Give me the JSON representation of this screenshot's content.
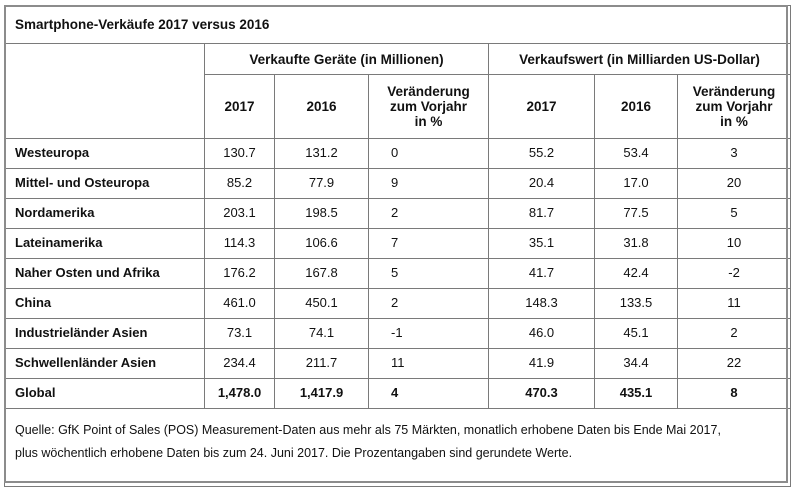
{
  "title": "Smartphone-Verkäufe 2017 versus 2016",
  "groups": {
    "units": "Verkaufte Geräte (in Millionen)",
    "value": "Verkaufswert (in Milliarden US-Dollar)"
  },
  "column_headers": {
    "units_2017": "2017",
    "units_2016": "2016",
    "units_change_l1": "Veränderung",
    "units_change_l2": "zum Vorjahr",
    "units_change_l3": "in %",
    "value_2017": "2017",
    "value_2016": "2016",
    "value_change_l1": "Veränderung",
    "value_change_l2": "zum Vorjahr",
    "value_change_l3": "in %"
  },
  "rows": [
    {
      "region": "Westeuropa",
      "u17": "130.7",
      "u16": "131.2",
      "uc": "0",
      "v17": "55.2",
      "v16": "53.4",
      "vc": "3"
    },
    {
      "region": "Mittel- und Osteuropa",
      "u17": "85.2",
      "u16": "77.9",
      "uc": "9",
      "v17": "20.4",
      "v16": "17.0",
      "vc": "20"
    },
    {
      "region": "Nordamerika",
      "u17": "203.1",
      "u16": "198.5",
      "uc": "2",
      "v17": "81.7",
      "v16": "77.5",
      "vc": "5"
    },
    {
      "region": "Lateinamerika",
      "u17": "114.3",
      "u16": "106.6",
      "uc": "7",
      "v17": "35.1",
      "v16": "31.8",
      "vc": "10"
    },
    {
      "region": "Naher Osten und Afrika",
      "u17": "176.2",
      "u16": "167.8",
      "uc": "5",
      "v17": "41.7",
      "v16": "42.4",
      "vc": "-2"
    },
    {
      "region": "China",
      "u17": "461.0",
      "u16": "450.1",
      "uc": "2",
      "v17": "148.3",
      "v16": "133.5",
      "vc": "11"
    },
    {
      "region": "Industrieländer Asien",
      "u17": "73.1",
      "u16": "74.1",
      "uc": "-1",
      "v17": "46.0",
      "v16": "45.1",
      "vc": "2"
    },
    {
      "region": "Schwellenländer Asien",
      "u17": "234.4",
      "u16": "211.7",
      "uc": "11",
      "v17": "41.9",
      "v16": "34.4",
      "vc": "22"
    }
  ],
  "total": {
    "region": "Global",
    "u17": "1,478.0",
    "u16": "1,417.9",
    "uc": "4",
    "v17": "470.3",
    "v16": "435.1",
    "vc": "8"
  },
  "note": {
    "line1": "Quelle: GfK Point of Sales (POS) Measurement-Daten aus mehr als 75 Märkten, monatlich erhobene Daten bis Ende Mai  2017,",
    "line2": "plus wöchentlich erhobene Daten bis zum 24. Juni 2017.  Die Prozentangaben sind gerundete Werte."
  }
}
